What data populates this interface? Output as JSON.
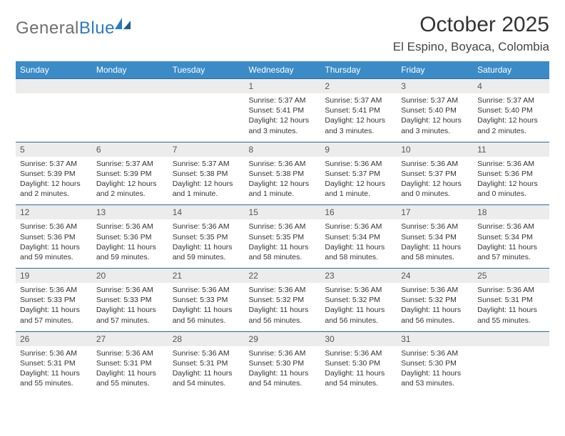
{
  "brand": {
    "part1": "General",
    "part2": "Blue"
  },
  "title": "October 2025",
  "location": "El Espino, Boyaca, Colombia",
  "colors": {
    "header_bg": "#3b8bc7",
    "header_fg": "#ffffff",
    "row_border": "#2a6aa0",
    "daynum_bg": "#ececec",
    "text": "#333333",
    "brand_gray": "#6f6f6f",
    "brand_blue": "#2a7bbf"
  },
  "typography": {
    "title_fontsize": 30,
    "location_fontsize": 17,
    "dow_fontsize": 12,
    "daynum_fontsize": 12,
    "data_fontsize": 10.5
  },
  "days_of_week": [
    "Sunday",
    "Monday",
    "Tuesday",
    "Wednesday",
    "Thursday",
    "Friday",
    "Saturday"
  ],
  "weeks": [
    [
      {
        "n": "",
        "sr": "",
        "ss": "",
        "dl": ""
      },
      {
        "n": "",
        "sr": "",
        "ss": "",
        "dl": ""
      },
      {
        "n": "",
        "sr": "",
        "ss": "",
        "dl": ""
      },
      {
        "n": "1",
        "sr": "Sunrise: 5:37 AM",
        "ss": "Sunset: 5:41 PM",
        "dl": "Daylight: 12 hours and 3 minutes."
      },
      {
        "n": "2",
        "sr": "Sunrise: 5:37 AM",
        "ss": "Sunset: 5:41 PM",
        "dl": "Daylight: 12 hours and 3 minutes."
      },
      {
        "n": "3",
        "sr": "Sunrise: 5:37 AM",
        "ss": "Sunset: 5:40 PM",
        "dl": "Daylight: 12 hours and 3 minutes."
      },
      {
        "n": "4",
        "sr": "Sunrise: 5:37 AM",
        "ss": "Sunset: 5:40 PM",
        "dl": "Daylight: 12 hours and 2 minutes."
      }
    ],
    [
      {
        "n": "5",
        "sr": "Sunrise: 5:37 AM",
        "ss": "Sunset: 5:39 PM",
        "dl": "Daylight: 12 hours and 2 minutes."
      },
      {
        "n": "6",
        "sr": "Sunrise: 5:37 AM",
        "ss": "Sunset: 5:39 PM",
        "dl": "Daylight: 12 hours and 2 minutes."
      },
      {
        "n": "7",
        "sr": "Sunrise: 5:37 AM",
        "ss": "Sunset: 5:38 PM",
        "dl": "Daylight: 12 hours and 1 minute."
      },
      {
        "n": "8",
        "sr": "Sunrise: 5:36 AM",
        "ss": "Sunset: 5:38 PM",
        "dl": "Daylight: 12 hours and 1 minute."
      },
      {
        "n": "9",
        "sr": "Sunrise: 5:36 AM",
        "ss": "Sunset: 5:37 PM",
        "dl": "Daylight: 12 hours and 1 minute."
      },
      {
        "n": "10",
        "sr": "Sunrise: 5:36 AM",
        "ss": "Sunset: 5:37 PM",
        "dl": "Daylight: 12 hours and 0 minutes."
      },
      {
        "n": "11",
        "sr": "Sunrise: 5:36 AM",
        "ss": "Sunset: 5:36 PM",
        "dl": "Daylight: 12 hours and 0 minutes."
      }
    ],
    [
      {
        "n": "12",
        "sr": "Sunrise: 5:36 AM",
        "ss": "Sunset: 5:36 PM",
        "dl": "Daylight: 11 hours and 59 minutes."
      },
      {
        "n": "13",
        "sr": "Sunrise: 5:36 AM",
        "ss": "Sunset: 5:36 PM",
        "dl": "Daylight: 11 hours and 59 minutes."
      },
      {
        "n": "14",
        "sr": "Sunrise: 5:36 AM",
        "ss": "Sunset: 5:35 PM",
        "dl": "Daylight: 11 hours and 59 minutes."
      },
      {
        "n": "15",
        "sr": "Sunrise: 5:36 AM",
        "ss": "Sunset: 5:35 PM",
        "dl": "Daylight: 11 hours and 58 minutes."
      },
      {
        "n": "16",
        "sr": "Sunrise: 5:36 AM",
        "ss": "Sunset: 5:34 PM",
        "dl": "Daylight: 11 hours and 58 minutes."
      },
      {
        "n": "17",
        "sr": "Sunrise: 5:36 AM",
        "ss": "Sunset: 5:34 PM",
        "dl": "Daylight: 11 hours and 58 minutes."
      },
      {
        "n": "18",
        "sr": "Sunrise: 5:36 AM",
        "ss": "Sunset: 5:34 PM",
        "dl": "Daylight: 11 hours and 57 minutes."
      }
    ],
    [
      {
        "n": "19",
        "sr": "Sunrise: 5:36 AM",
        "ss": "Sunset: 5:33 PM",
        "dl": "Daylight: 11 hours and 57 minutes."
      },
      {
        "n": "20",
        "sr": "Sunrise: 5:36 AM",
        "ss": "Sunset: 5:33 PM",
        "dl": "Daylight: 11 hours and 57 minutes."
      },
      {
        "n": "21",
        "sr": "Sunrise: 5:36 AM",
        "ss": "Sunset: 5:33 PM",
        "dl": "Daylight: 11 hours and 56 minutes."
      },
      {
        "n": "22",
        "sr": "Sunrise: 5:36 AM",
        "ss": "Sunset: 5:32 PM",
        "dl": "Daylight: 11 hours and 56 minutes."
      },
      {
        "n": "23",
        "sr": "Sunrise: 5:36 AM",
        "ss": "Sunset: 5:32 PM",
        "dl": "Daylight: 11 hours and 56 minutes."
      },
      {
        "n": "24",
        "sr": "Sunrise: 5:36 AM",
        "ss": "Sunset: 5:32 PM",
        "dl": "Daylight: 11 hours and 56 minutes."
      },
      {
        "n": "25",
        "sr": "Sunrise: 5:36 AM",
        "ss": "Sunset: 5:31 PM",
        "dl": "Daylight: 11 hours and 55 minutes."
      }
    ],
    [
      {
        "n": "26",
        "sr": "Sunrise: 5:36 AM",
        "ss": "Sunset: 5:31 PM",
        "dl": "Daylight: 11 hours and 55 minutes."
      },
      {
        "n": "27",
        "sr": "Sunrise: 5:36 AM",
        "ss": "Sunset: 5:31 PM",
        "dl": "Daylight: 11 hours and 55 minutes."
      },
      {
        "n": "28",
        "sr": "Sunrise: 5:36 AM",
        "ss": "Sunset: 5:31 PM",
        "dl": "Daylight: 11 hours and 54 minutes."
      },
      {
        "n": "29",
        "sr": "Sunrise: 5:36 AM",
        "ss": "Sunset: 5:30 PM",
        "dl": "Daylight: 11 hours and 54 minutes."
      },
      {
        "n": "30",
        "sr": "Sunrise: 5:36 AM",
        "ss": "Sunset: 5:30 PM",
        "dl": "Daylight: 11 hours and 54 minutes."
      },
      {
        "n": "31",
        "sr": "Sunrise: 5:36 AM",
        "ss": "Sunset: 5:30 PM",
        "dl": "Daylight: 11 hours and 53 minutes."
      },
      {
        "n": "",
        "sr": "",
        "ss": "",
        "dl": ""
      }
    ]
  ]
}
